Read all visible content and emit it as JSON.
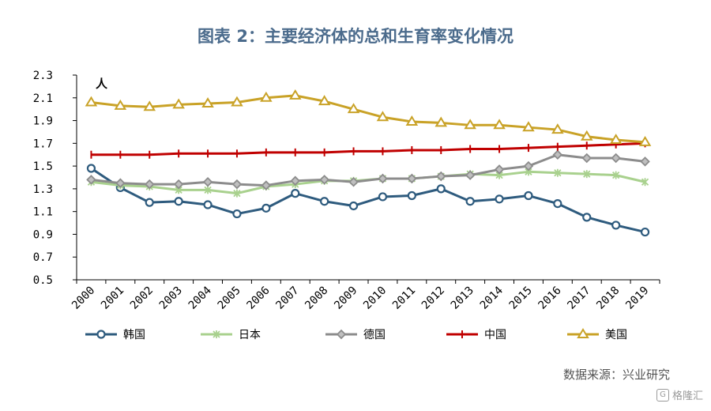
{
  "title": "图表 2：主要经济体的总和生育率变化情况",
  "source": "数据来源：兴业研究",
  "watermark": "格隆汇",
  "chart_data": {
    "type": "line",
    "title": "图表 2：主要经济体的总和生育率变化情况",
    "unit_label": "人",
    "xlabel": "",
    "ylabel": "",
    "ylim": [
      0.5,
      2.3
    ],
    "yticks": [
      "0.5",
      "0.7",
      "0.9",
      "1.1",
      "1.3",
      "1.5",
      "1.7",
      "1.9",
      "2.1",
      "2.3"
    ],
    "grid": false,
    "legend_position": "bottom",
    "categories": [
      "2000",
      "2001",
      "2002",
      "2003",
      "2004",
      "2005",
      "2006",
      "2007",
      "2008",
      "2009",
      "2010",
      "2011",
      "2012",
      "2013",
      "2014",
      "2015",
      "2016",
      "2017",
      "2018",
      "2019"
    ],
    "series": [
      {
        "name": "韩国",
        "color": "#2e5b7e",
        "marker": "circle",
        "values": [
          1.48,
          1.31,
          1.18,
          1.19,
          1.16,
          1.08,
          1.13,
          1.26,
          1.19,
          1.15,
          1.23,
          1.24,
          1.3,
          1.19,
          1.21,
          1.24,
          1.17,
          1.05,
          0.98,
          0.92
        ]
      },
      {
        "name": "日本",
        "color": "#a9d18e",
        "marker": "star",
        "values": [
          1.36,
          1.33,
          1.32,
          1.29,
          1.29,
          1.26,
          1.32,
          1.34,
          1.37,
          1.37,
          1.39,
          1.39,
          1.41,
          1.43,
          1.42,
          1.45,
          1.44,
          1.43,
          1.42,
          1.36
        ]
      },
      {
        "name": "德国",
        "color": "#8c8c8c",
        "marker": "diamond",
        "values": [
          1.38,
          1.35,
          1.34,
          1.34,
          1.36,
          1.34,
          1.33,
          1.37,
          1.38,
          1.36,
          1.39,
          1.39,
          1.41,
          1.42,
          1.47,
          1.5,
          1.6,
          1.57,
          1.57,
          1.54
        ]
      },
      {
        "name": "中国",
        "color": "#c00000",
        "marker": "plus",
        "values": [
          1.6,
          1.6,
          1.6,
          1.61,
          1.61,
          1.61,
          1.62,
          1.62,
          1.62,
          1.63,
          1.63,
          1.64,
          1.64,
          1.65,
          1.65,
          1.66,
          1.67,
          1.68,
          1.69,
          1.7
        ]
      },
      {
        "name": "美国",
        "color": "#c9a227",
        "marker": "triangle",
        "values": [
          2.06,
          2.03,
          2.02,
          2.04,
          2.05,
          2.06,
          2.1,
          2.12,
          2.07,
          2.0,
          1.93,
          1.89,
          1.88,
          1.86,
          1.86,
          1.84,
          1.82,
          1.76,
          1.73,
          1.71
        ]
      }
    ]
  }
}
